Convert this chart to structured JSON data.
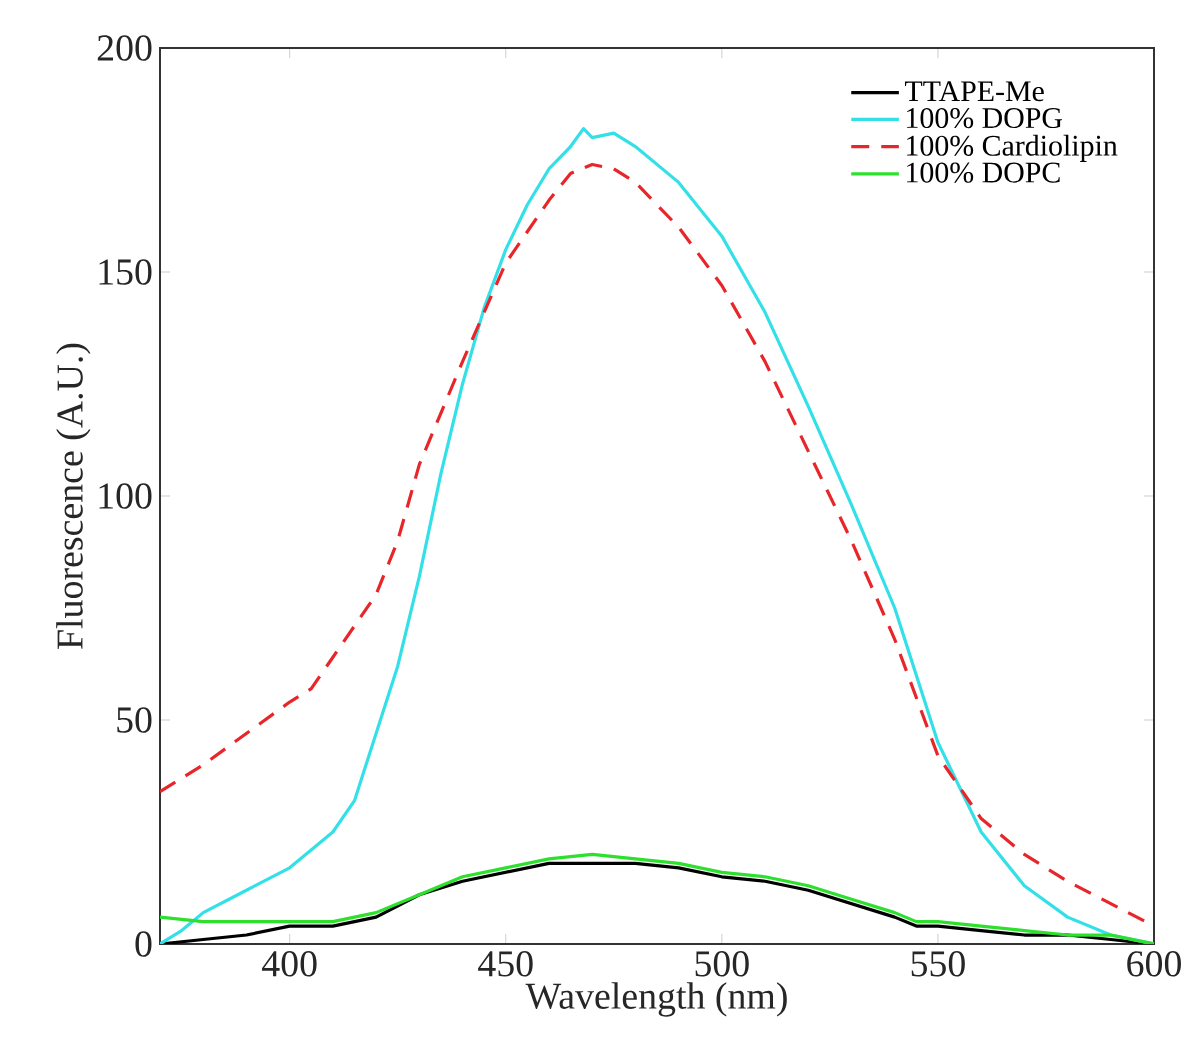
{
  "chart_data": {
    "type": "line",
    "xlabel": "Wavelength (nm)",
    "ylabel": "Fluorescence (A.U.)",
    "xlim": [
      370,
      600
    ],
    "ylim": [
      0,
      200
    ],
    "xticks": [
      400,
      450,
      500,
      550,
      600
    ],
    "yticks": [
      0,
      50,
      100,
      150,
      200
    ],
    "legend": "top right",
    "series": [
      {
        "name": "TTAPE-Me",
        "color": "#000000",
        "line_style": "solid",
        "x": [
          370,
          380,
          390,
          400,
          410,
          420,
          430,
          440,
          450,
          460,
          470,
          480,
          490,
          500,
          510,
          520,
          530,
          540,
          545,
          550,
          560,
          570,
          580,
          590,
          600
        ],
        "values": [
          0,
          1,
          2,
          4,
          4,
          6,
          11,
          14,
          16,
          18,
          18,
          18,
          17,
          15,
          14,
          12,
          9,
          6,
          4,
          4,
          3,
          2,
          2,
          1,
          0
        ]
      },
      {
        "name": "100% DOPG",
        "color": "#33e0e8",
        "line_style": "solid",
        "x": [
          370,
          375,
          380,
          390,
          400,
          410,
          415,
          420,
          425,
          430,
          435,
          440,
          445,
          450,
          455,
          460,
          465,
          468,
          470,
          475,
          480,
          490,
          500,
          510,
          520,
          530,
          540,
          545,
          550,
          560,
          570,
          580,
          590,
          600
        ],
        "values": [
          0,
          3,
          7,
          12,
          17,
          25,
          32,
          47,
          62,
          82,
          105,
          125,
          142,
          155,
          165,
          173,
          178,
          182,
          180,
          181,
          178,
          170,
          158,
          141,
          120,
          98,
          75,
          60,
          45,
          25,
          13,
          6,
          2,
          0
        ]
      },
      {
        "name": "100% Cardiolipin",
        "color": "#e8262a",
        "line_style": "dashed",
        "x": [
          370,
          380,
          390,
          400,
          405,
          410,
          420,
          425,
          430,
          440,
          450,
          460,
          465,
          470,
          475,
          480,
          490,
          500,
          510,
          520,
          530,
          540,
          550,
          560,
          570,
          580,
          590,
          600
        ],
        "values": [
          34,
          40,
          47,
          54,
          57,
          64,
          78,
          90,
          107,
          130,
          152,
          166,
          172,
          174,
          173,
          170,
          160,
          147,
          130,
          110,
          90,
          68,
          42,
          28,
          20,
          14,
          9,
          4
        ]
      },
      {
        "name": "100% DOPC",
        "color": "#2ee02e",
        "line_style": "solid",
        "x": [
          370,
          380,
          390,
          400,
          410,
          420,
          430,
          440,
          450,
          460,
          470,
          480,
          490,
          500,
          510,
          520,
          530,
          540,
          545,
          550,
          560,
          570,
          580,
          590,
          600
        ],
        "values": [
          6,
          5,
          5,
          5,
          5,
          7,
          11,
          15,
          17,
          19,
          20,
          19,
          18,
          16,
          15,
          13,
          10,
          7,
          5,
          5,
          4,
          3,
          2,
          2,
          0
        ]
      }
    ]
  }
}
